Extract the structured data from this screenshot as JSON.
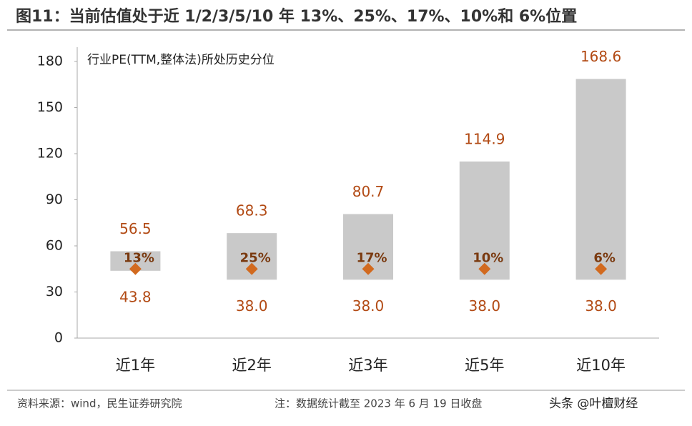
{
  "chart_data": {
    "type": "range",
    "title": "图11：当前估值处于近 1/2/3/5/10 年 13%、25%、17%、10%和 6%位置",
    "subtitle": "行业PE(TTM,整体法)所处历史分位",
    "categories": [
      "近1年",
      "近2年",
      "近3年",
      "近5年",
      "近10年"
    ],
    "low": {
      "values": [
        43.8,
        38,
        38,
        38,
        38
      ],
      "value_labels": [
        "43.8",
        "38.0",
        "38.0",
        "38.0",
        "38.0"
      ]
    },
    "high": {
      "values": [
        56.5,
        68.3,
        80.7,
        114.9,
        168.6
      ],
      "value_labels": [
        "56.5",
        "68.3",
        "80.7",
        "114.9",
        "168.6"
      ]
    },
    "current": {
      "values": [
        45,
        45,
        45,
        45,
        45
      ]
    },
    "percentile": {
      "values": [
        13,
        25,
        17,
        10,
        6
      ],
      "value_labels": [
        "13%",
        "25%",
        "17%",
        "10%",
        "6%"
      ]
    },
    "bar_color": "#c9c9c9",
    "marker_color": "#d26a1f",
    "label_color": "#b24a14",
    "ylim": [
      0,
      180
    ],
    "yticks": [
      0,
      30,
      60,
      90,
      120,
      150,
      180
    ],
    "grid": false
  },
  "footer": {
    "source": "资料来源：wind，民生证券研究院",
    "note": "注：数据统计截至 2023 年 6 月 19 日收盘",
    "watermark": "头条 @叶檀财经"
  }
}
